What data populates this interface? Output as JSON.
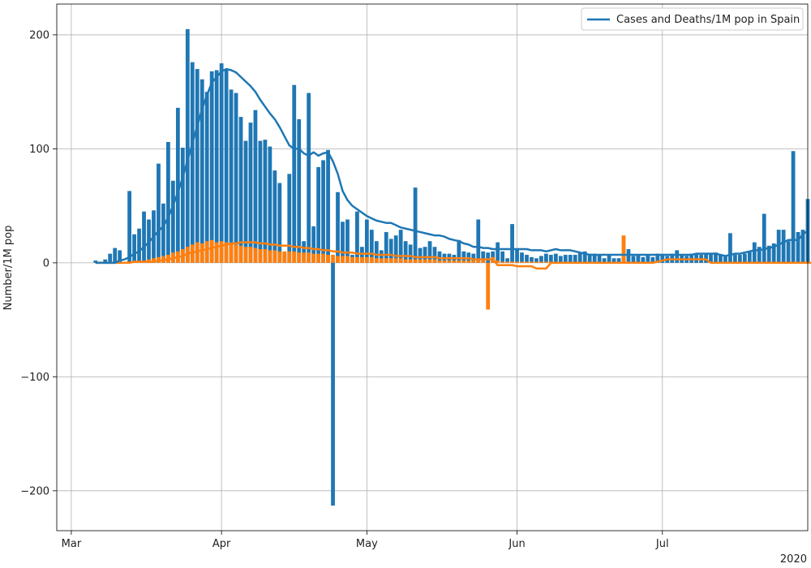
{
  "chart_data": {
    "type": "bar",
    "ylabel": "Number/1M pop",
    "xlabel": "",
    "year_label": "2020",
    "ylim": [
      -235,
      227
    ],
    "xlim": [
      "2020-02-27",
      "2020-07-31"
    ],
    "grid": true,
    "legend": {
      "position": "top-right",
      "label": "Cases and Deaths/1M pop in Spain",
      "color": "#1f77b4"
    },
    "x_ticks": [
      {
        "date": "2020-03-01",
        "label": "Mar"
      },
      {
        "date": "2020-04-01",
        "label": "Apr"
      },
      {
        "date": "2020-05-01",
        "label": "May"
      },
      {
        "date": "2020-06-01",
        "label": "Jun"
      },
      {
        "date": "2020-07-01",
        "label": "Jul"
      }
    ],
    "y_ticks": [
      -200,
      -100,
      0,
      100,
      200
    ],
    "colors": {
      "cases": "#1f77b4",
      "deaths": "#ff7f0e"
    },
    "start_date": "2020-03-06",
    "series": [
      {
        "type": "bar",
        "color": "#1f77b4",
        "values": [
          2,
          1,
          3,
          8,
          13,
          11,
          0,
          63,
          25,
          30,
          45,
          38,
          46,
          87,
          52,
          106,
          72,
          136,
          101,
          205,
          176,
          170,
          161,
          150,
          168,
          169,
          175,
          170,
          152,
          149,
          128,
          107,
          123,
          134,
          107,
          108,
          102,
          81,
          70,
          8,
          78,
          156,
          126,
          19,
          149,
          32,
          84,
          90,
          99,
          -213,
          62,
          36,
          38,
          7,
          45,
          14,
          38,
          29,
          19,
          11,
          27,
          21,
          24,
          29,
          19,
          16,
          66,
          13,
          14,
          19,
          14,
          10,
          8,
          8,
          7,
          20,
          10,
          9,
          8,
          38,
          10,
          9,
          10,
          18,
          10,
          4,
          34,
          12,
          9,
          7,
          5,
          4,
          6,
          8,
          7,
          8,
          6,
          7,
          7,
          7,
          9,
          10,
          8,
          8,
          7,
          4,
          7,
          4,
          4,
          5,
          12,
          6,
          7,
          5,
          7,
          5,
          8,
          7,
          6,
          8,
          11,
          7,
          6,
          8,
          8,
          7,
          8,
          8,
          9,
          7,
          6,
          26,
          7,
          7,
          8,
          10,
          18,
          14,
          43,
          15,
          17,
          29,
          29,
          19,
          98,
          27,
          29,
          56
        ]
      },
      {
        "type": "bar",
        "color": "#ff7f0e",
        "values": [
          0,
          0,
          0,
          0,
          0,
          0,
          0,
          1,
          1,
          1,
          2,
          3,
          4,
          5,
          6,
          7,
          9,
          10,
          12,
          14,
          16,
          18,
          17,
          19,
          20,
          18,
          19,
          18,
          17,
          16,
          15,
          14,
          14,
          13,
          12,
          12,
          11,
          11,
          10,
          10,
          10,
          10,
          9,
          9,
          9,
          8,
          8,
          8,
          7,
          7,
          6,
          6,
          6,
          5,
          5,
          5,
          5,
          5,
          4,
          4,
          4,
          4,
          4,
          4,
          3,
          3,
          3,
          3,
          3,
          3,
          3,
          2,
          2,
          2,
          2,
          2,
          2,
          2,
          2,
          2,
          2,
          -41,
          5,
          2,
          1,
          1,
          1,
          1,
          1,
          1,
          1,
          1,
          1,
          1,
          1,
          0,
          0,
          0,
          0,
          0,
          0,
          0,
          0,
          0,
          0,
          0,
          0,
          0,
          0,
          24,
          1,
          0,
          0,
          0,
          0,
          0,
          0,
          0,
          0,
          0,
          0,
          0,
          0,
          0,
          0,
          0,
          0,
          0,
          0,
          0,
          0,
          0,
          0,
          0,
          0,
          0,
          0,
          0,
          0,
          0,
          0,
          0,
          0,
          0,
          0,
          0,
          0
        ]
      },
      {
        "type": "line",
        "color": "#1f77b4",
        "values": [
          0,
          0,
          0,
          0,
          0,
          2,
          3,
          5,
          8,
          10,
          14,
          18,
          23,
          28,
          32,
          40,
          50,
          62,
          75,
          90,
          105,
          120,
          135,
          147,
          158,
          163,
          168,
          170,
          169,
          167,
          163,
          159,
          155,
          150,
          143,
          137,
          131,
          126,
          119,
          111,
          103,
          100,
          100,
          96,
          94,
          97,
          94,
          96,
          97,
          89,
          78,
          63,
          55,
          50,
          47,
          44,
          41,
          39,
          37,
          36,
          35,
          35,
          33,
          31,
          30,
          29,
          28,
          27,
          26,
          25,
          24,
          24,
          23,
          21,
          20,
          19,
          17,
          16,
          14,
          14,
          13,
          13,
          12,
          12,
          12,
          12,
          12,
          12,
          12,
          12,
          11,
          11,
          11,
          10,
          11,
          12,
          11,
          11,
          11,
          10,
          9,
          8,
          7,
          7,
          7,
          7,
          7,
          7,
          7,
          7,
          7,
          7,
          7,
          7,
          7,
          7,
          7,
          7,
          7,
          7,
          7,
          7,
          7,
          7,
          8,
          8,
          8,
          8,
          8,
          7,
          6,
          7,
          8,
          8,
          9,
          10,
          11,
          11,
          12,
          13,
          14,
          16,
          18,
          20,
          20,
          20,
          25,
          28
        ]
      },
      {
        "type": "line",
        "color": "#ff7f0e",
        "values": [
          0,
          0,
          0,
          0,
          0,
          0,
          0,
          0,
          1,
          1,
          1,
          1,
          1,
          2,
          2,
          3,
          4,
          5,
          6,
          8,
          9,
          10,
          11,
          12,
          13,
          14,
          15,
          16,
          17,
          17,
          18,
          18,
          18,
          18,
          17,
          17,
          16,
          16,
          15,
          15,
          15,
          14,
          14,
          13,
          13,
          12,
          12,
          11,
          11,
          10,
          10,
          9,
          9,
          9,
          8,
          8,
          8,
          8,
          7,
          7,
          7,
          7,
          6,
          6,
          6,
          6,
          5,
          5,
          5,
          5,
          5,
          4,
          4,
          4,
          4,
          4,
          4,
          4,
          3,
          3,
          3,
          3,
          3,
          -2,
          -2,
          -2,
          -2,
          -3,
          -3,
          -3,
          -3,
          -5,
          -5,
          -5,
          0,
          0,
          0,
          0,
          0,
          0,
          0,
          0,
          0,
          0,
          0,
          0,
          0,
          0,
          0,
          0,
          0,
          0,
          0,
          0,
          0,
          0,
          1,
          2,
          3,
          3,
          3,
          3,
          3,
          3,
          3,
          3,
          3,
          0,
          0,
          0,
          0,
          0,
          0,
          0,
          0,
          0,
          0,
          0,
          0,
          0,
          0,
          0,
          0,
          0,
          0,
          0,
          0,
          0,
          0,
          0,
          0
        ]
      }
    ]
  }
}
